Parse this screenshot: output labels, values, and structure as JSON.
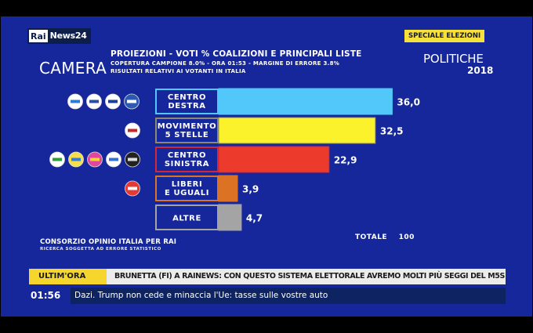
{
  "header": {
    "logo_rai": "Rai",
    "logo_news": "News24",
    "chamber": "CAMERA",
    "title": "PROIEZIONI - VOTI % COALIZIONI E PRINCIPALI LISTE",
    "subtitle_1": "COPERTURA CAMPIONE 8.0% - ORA 01:53 - MARGINE DI ERRORE 3.8%",
    "subtitle_2": "RISULTATI RELATIVI AI VOTANTI IN ITALIA",
    "special_badge": "SPECIALE ELEZIONI",
    "election": "POLITICHE",
    "year": "2018"
  },
  "footer": {
    "source": "CONSORZIO OPINIO ITALIA PER RAI",
    "disclaimer": "RICERCA SOGGETTA AD ERRORE STATISTICO",
    "total_label": "TOTALE",
    "total_value": "100"
  },
  "ticker": {
    "breaking_tag": "ULTIM'ORA",
    "breaking_text": "BRUNETTA (FI) A RAINEWS: CON QUESTO SISTEMA ELETTORALE AVREMO MOLTI PIÙ SEGGI DEL M5S",
    "time": "01:56",
    "news_text": "Dazi. Trump non cede e minaccia l'Ue: tasse sulle vostre auto"
  },
  "chart_data": {
    "type": "bar",
    "orientation": "horizontal",
    "title": "PROIEZIONI - VOTI % COALIZIONI E PRINCIPALI LISTE",
    "xlabel": "",
    "ylabel": "",
    "xlim": [
      0,
      36
    ],
    "grid": false,
    "categories": [
      [
        "CENTRO",
        "DESTRA"
      ],
      [
        "MOVIMENTO",
        "5 STELLE"
      ],
      [
        "CENTRO",
        "SINISTRA"
      ],
      [
        "LIBERI",
        "E UGUALI"
      ],
      [
        "ALTRE"
      ]
    ],
    "values": [
      36.0,
      32.5,
      22.9,
      3.9,
      4.7
    ],
    "value_labels": [
      "36,0",
      "32,5",
      "22,9",
      "3,9",
      "4,7"
    ],
    "colors": [
      "#52c8fa",
      "#fbf22c",
      "#ec3b2d",
      "#dc7324",
      "#a4a4a4"
    ],
    "border_colors": [
      "#52c8fa",
      "#8a8a72",
      "#d2283a",
      "#dc7324",
      "#a4a4a4"
    ],
    "party_logos": [
      [
        "forza-italia-logo",
        "noi-con-italia-logo",
        "fratelli-italia-logo",
        "lega-logo"
      ],
      [
        "m5s-logo"
      ],
      [
        "pd-logo",
        "civica-popolare-logo",
        "piu-europa-logo",
        "insieme-logo",
        "svp-logo"
      ],
      [
        "leu-logo"
      ],
      []
    ]
  }
}
